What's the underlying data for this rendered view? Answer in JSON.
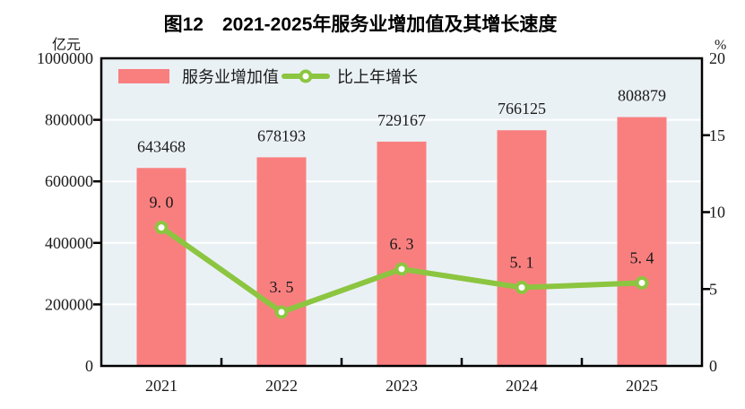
{
  "colors": {
    "bar": "#F97F7F",
    "line": "#8CC540",
    "marker_fill": "#FFFFFF",
    "plot_bg": "#EAF1F5",
    "grid": "#FFFFFF",
    "axis": "#000000",
    "text": "#1A1A1A"
  },
  "chart_data": {
    "type": "bar+line",
    "title": "图12　2021-2025年服务业增加值及其增长速度",
    "categories": [
      "2021",
      "2022",
      "2023",
      "2024",
      "2025"
    ],
    "series": [
      {
        "name": "服务业增加值",
        "type": "bar",
        "axis": "left",
        "color": "#F97F7F",
        "values": [
          643468,
          678193,
          729167,
          766125,
          808879
        ],
        "value_labels": [
          "643468",
          "678193",
          "729167",
          "766125",
          "808879"
        ]
      },
      {
        "name": "比上年增长",
        "type": "line",
        "axis": "right",
        "color": "#8CC540",
        "marker": "circle-white",
        "values": [
          9.0,
          3.5,
          6.3,
          5.1,
          5.4
        ],
        "value_labels": [
          "9. 0",
          "3. 5",
          "6. 3",
          "5. 1",
          "5. 4"
        ]
      }
    ],
    "left_axis": {
      "unit": "亿元",
      "lim": [
        0,
        1000000
      ],
      "ticks": [
        0,
        200000,
        400000,
        600000,
        800000,
        1000000
      ]
    },
    "right_axis": {
      "unit": "%",
      "lim": [
        0,
        20
      ],
      "ticks": [
        0,
        5,
        10,
        15,
        20
      ]
    },
    "grid": "horizontal",
    "legend_position": "top-left-inside"
  }
}
